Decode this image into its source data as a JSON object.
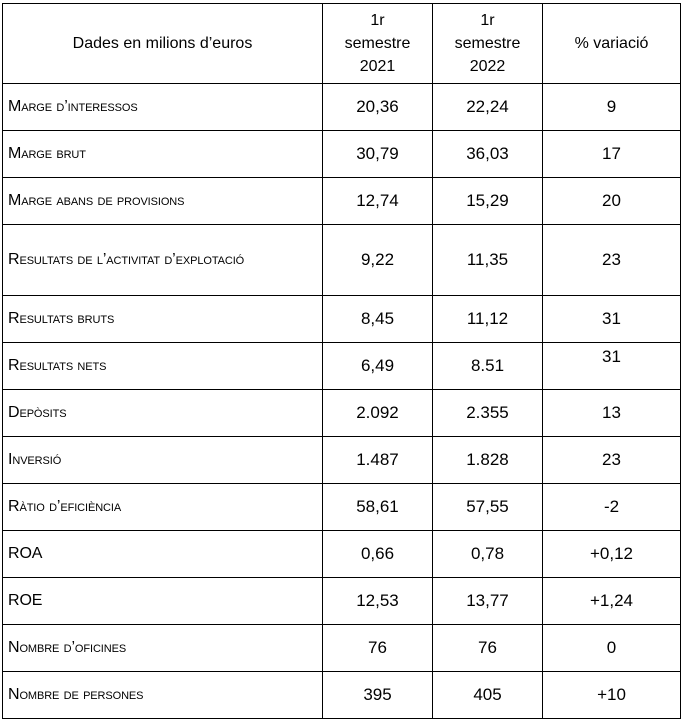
{
  "table": {
    "header": {
      "label": "Dades en milions d’euros",
      "col1": [
        "1r",
        "semestre",
        "2021"
      ],
      "col2": [
        "1r",
        "semestre",
        "2022"
      ],
      "col3": "% variació"
    },
    "rows": [
      {
        "label": "Marge d’interessos",
        "v2021": "20,36",
        "v2022": "22,24",
        "variacio": "9"
      },
      {
        "label": "Marge brut",
        "v2021": "30,79",
        "v2022": "36,03",
        "variacio": "17"
      },
      {
        "label": "Marge abans de provisions",
        "v2021": "12,74",
        "v2022": "15,29",
        "variacio": "20"
      },
      {
        "label": "Resultats de l’activitat d’explotació",
        "v2021": "9,22",
        "v2022": "11,35",
        "variacio": "23"
      },
      {
        "label": "Resultats bruts",
        "v2021": "8,45",
        "v2022": "11,12",
        "variacio": "31"
      },
      {
        "label": "Resultats nets",
        "v2021": "6,49",
        "v2022": "8.51",
        "variacio": "31"
      },
      {
        "label": "Depòsits",
        "v2021": "2.092",
        "v2022": "2.355",
        "variacio": "13"
      },
      {
        "label": "Inversió",
        "v2021": "1.487",
        "v2022": "1.828",
        "variacio": "23"
      },
      {
        "label": "Ràtio d’eficiència",
        "v2021": "58,61",
        "v2022": "57,55",
        "variacio": "-2"
      },
      {
        "label": "ROA",
        "v2021": "0,66",
        "v2022": "0,78",
        "variacio": "+0,12"
      },
      {
        "label": "ROE",
        "v2021": "12,53",
        "v2022": "13,77",
        "variacio": "+1,24"
      },
      {
        "label": "Nombre d’oficines",
        "v2021": "76",
        "v2022": "76",
        "variacio": "0"
      },
      {
        "label": "Nombre de persones",
        "v2021": "395",
        "v2022": "405",
        "variacio": "+10"
      }
    ]
  }
}
